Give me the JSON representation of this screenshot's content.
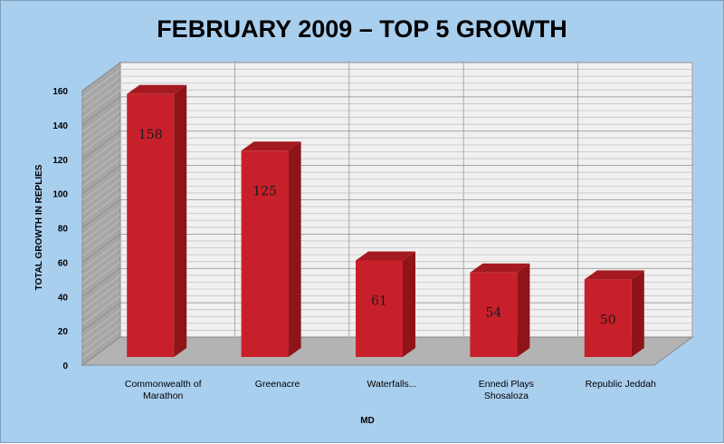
{
  "chart_data": {
    "type": "bar",
    "title": "FEBRUARY 2009 – TOP 5 GROWTH",
    "xlabel": "MD",
    "ylabel": "TOTAL GROWTH IN REPLIES",
    "categories": [
      [
        "Commonwealth of",
        "Marathon"
      ],
      [
        "Greenacre"
      ],
      [
        "Waterfalls..."
      ],
      [
        "Ennedi Plays",
        "Shosaloza"
      ],
      [
        "Republic Jeddah"
      ]
    ],
    "values": [
      158,
      125,
      61,
      54,
      50
    ],
    "value_labels": [
      "158",
      "125",
      "61",
      "54",
      "50"
    ],
    "ylim": [
      0,
      160
    ],
    "yticks": [
      "0",
      "20",
      "40",
      "60",
      "80",
      "100",
      "120",
      "140",
      "160"
    ],
    "grid": true,
    "legend": "none",
    "three_d": true,
    "colors": {
      "bar_front": "#c8202a",
      "bar_side": "#8e1418",
      "bar_top": "#a41a20",
      "background": "#a9cfef",
      "back_wall": "#f0f0f0",
      "side_wall": "#a6a6a6",
      "floor": "#b3b3b3",
      "gridline": "#8c8c8c"
    }
  }
}
